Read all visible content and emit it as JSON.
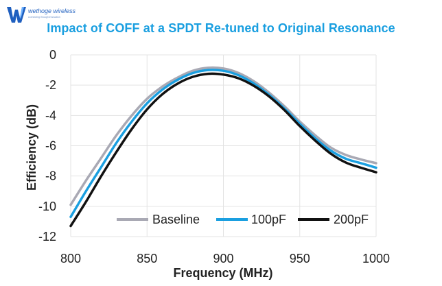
{
  "logo": {
    "text": "wethoge wireless",
    "tagline": "connecting through innovation",
    "colors": {
      "mark": "#1f5fbf",
      "mark_accent": "#6fb3ff",
      "text": "#1f5fbf"
    }
  },
  "colors": {
    "title": "#1a9fe0",
    "grid": "#e3e3e3",
    "axis_text": "#222222"
  },
  "chart_data": {
    "type": "line",
    "title": "Impact of COFF at a SPDT Re-tuned to Original Resonance",
    "xlabel": "Frequency (MHz)",
    "ylabel": "Efficiency (dB)",
    "xlim": [
      800,
      1000
    ],
    "ylim": [
      -12,
      0
    ],
    "x_ticks": [
      800,
      850,
      900,
      950,
      1000
    ],
    "y_ticks": [
      0,
      -2,
      -4,
      -6,
      -8,
      -10,
      -12
    ],
    "grid": true,
    "legend_position": "bottom-right",
    "x": [
      800,
      810,
      820,
      830,
      840,
      850,
      860,
      870,
      880,
      890,
      900,
      910,
      920,
      930,
      940,
      950,
      960,
      970,
      980,
      990,
      1000
    ],
    "series": [
      {
        "name": "Baseline",
        "color": "#a9a9b4",
        "values": [
          -9.9,
          -8.3,
          -6.8,
          -5.3,
          -4.0,
          -2.9,
          -2.1,
          -1.5,
          -1.05,
          -0.85,
          -0.9,
          -1.2,
          -1.75,
          -2.5,
          -3.4,
          -4.4,
          -5.3,
          -6.1,
          -6.6,
          -6.9,
          -7.15
        ]
      },
      {
        "name": "100pF",
        "color": "#1a9fe0",
        "values": [
          -10.7,
          -9.0,
          -7.4,
          -5.8,
          -4.4,
          -3.2,
          -2.3,
          -1.65,
          -1.2,
          -1.0,
          -1.05,
          -1.35,
          -1.9,
          -2.65,
          -3.55,
          -4.55,
          -5.5,
          -6.3,
          -6.85,
          -7.15,
          -7.45
        ]
      },
      {
        "name": "200pF",
        "color": "#111111",
        "values": [
          -11.3,
          -9.7,
          -8.0,
          -6.4,
          -4.9,
          -3.6,
          -2.6,
          -1.9,
          -1.45,
          -1.25,
          -1.3,
          -1.55,
          -2.05,
          -2.75,
          -3.65,
          -4.7,
          -5.65,
          -6.5,
          -7.1,
          -7.45,
          -7.75
        ]
      }
    ]
  }
}
